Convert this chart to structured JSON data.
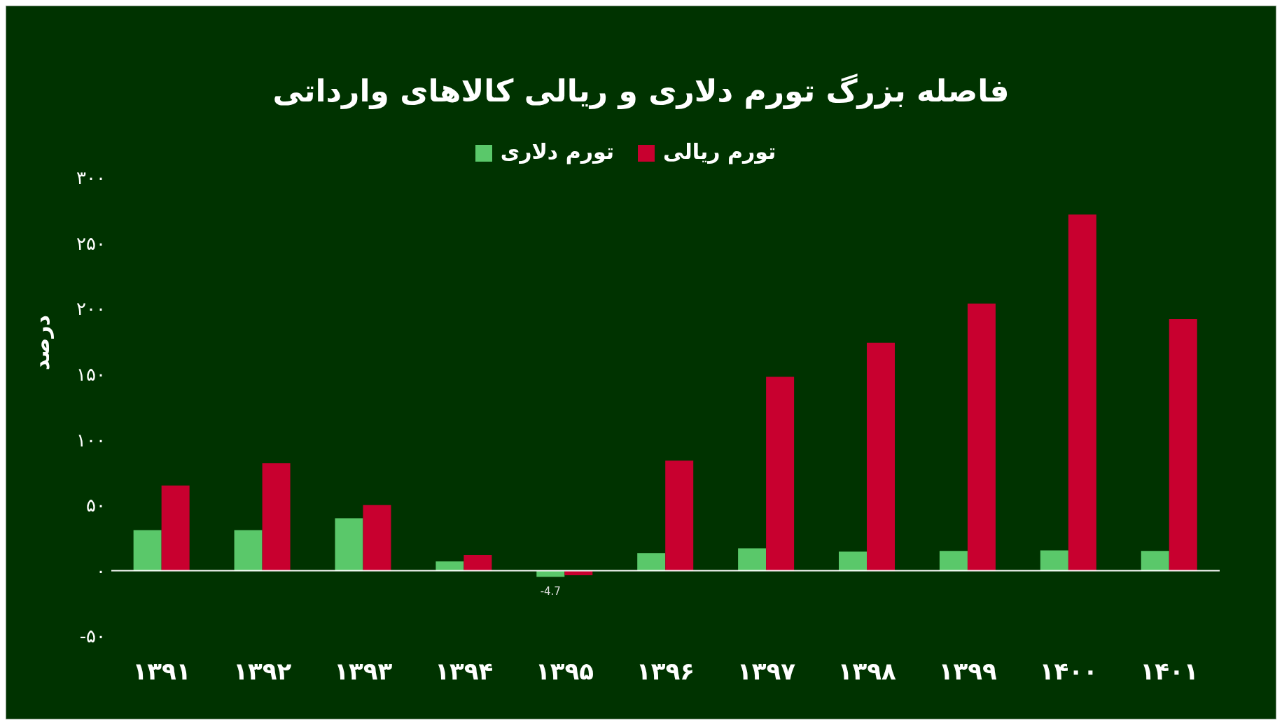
{
  "chart_data": {
    "type": "bar",
    "title": "فاصله بزرگ تورم دلاری و ریالی کالاهای وارداتی",
    "ylabel": "درصد",
    "categories": [
      "۱۳۹۱",
      "۱۳۹۲",
      "۱۳۹۳",
      "۱۳۹۴",
      "۱۳۹۵",
      "۱۳۹۶",
      "۱۳۹۷",
      "۱۳۹۸",
      "۱۳۹۹",
      "۱۴۰۰",
      "۱۴۰۱"
    ],
    "series": [
      {
        "name": "تورم دلاری",
        "color": "#5ac86a",
        "values": [
          31,
          31,
          40,
          7,
          -4.7,
          13.5,
          17,
          14.5,
          15,
          15.5,
          15
        ],
        "value_labels": [
          null,
          null,
          null,
          null,
          "-4.7",
          null,
          null,
          null,
          null,
          null,
          null
        ]
      },
      {
        "name": "تورم ریالی",
        "color": "#c8002f",
        "values": [
          65,
          82,
          50,
          12,
          -3.5,
          84,
          148,
          174,
          204,
          272,
          192
        ]
      }
    ],
    "ylim": [
      -50,
      300
    ],
    "yticks": [
      {
        "value": -50,
        "label": "-۵۰"
      },
      {
        "value": 0,
        "label": "۰"
      },
      {
        "value": 50,
        "label": "۵۰"
      },
      {
        "value": 100,
        "label": "۱۰۰"
      },
      {
        "value": 150,
        "label": "۱۵۰"
      },
      {
        "value": 200,
        "label": "۲۰۰"
      },
      {
        "value": 250,
        "label": "۲۵۰"
      },
      {
        "value": 300,
        "label": "۳۰۰"
      }
    ],
    "ref_lines": [
      {
        "axis": "y",
        "value": 0,
        "color": "#ffffff"
      }
    ],
    "grid": false,
    "legend": "top"
  }
}
